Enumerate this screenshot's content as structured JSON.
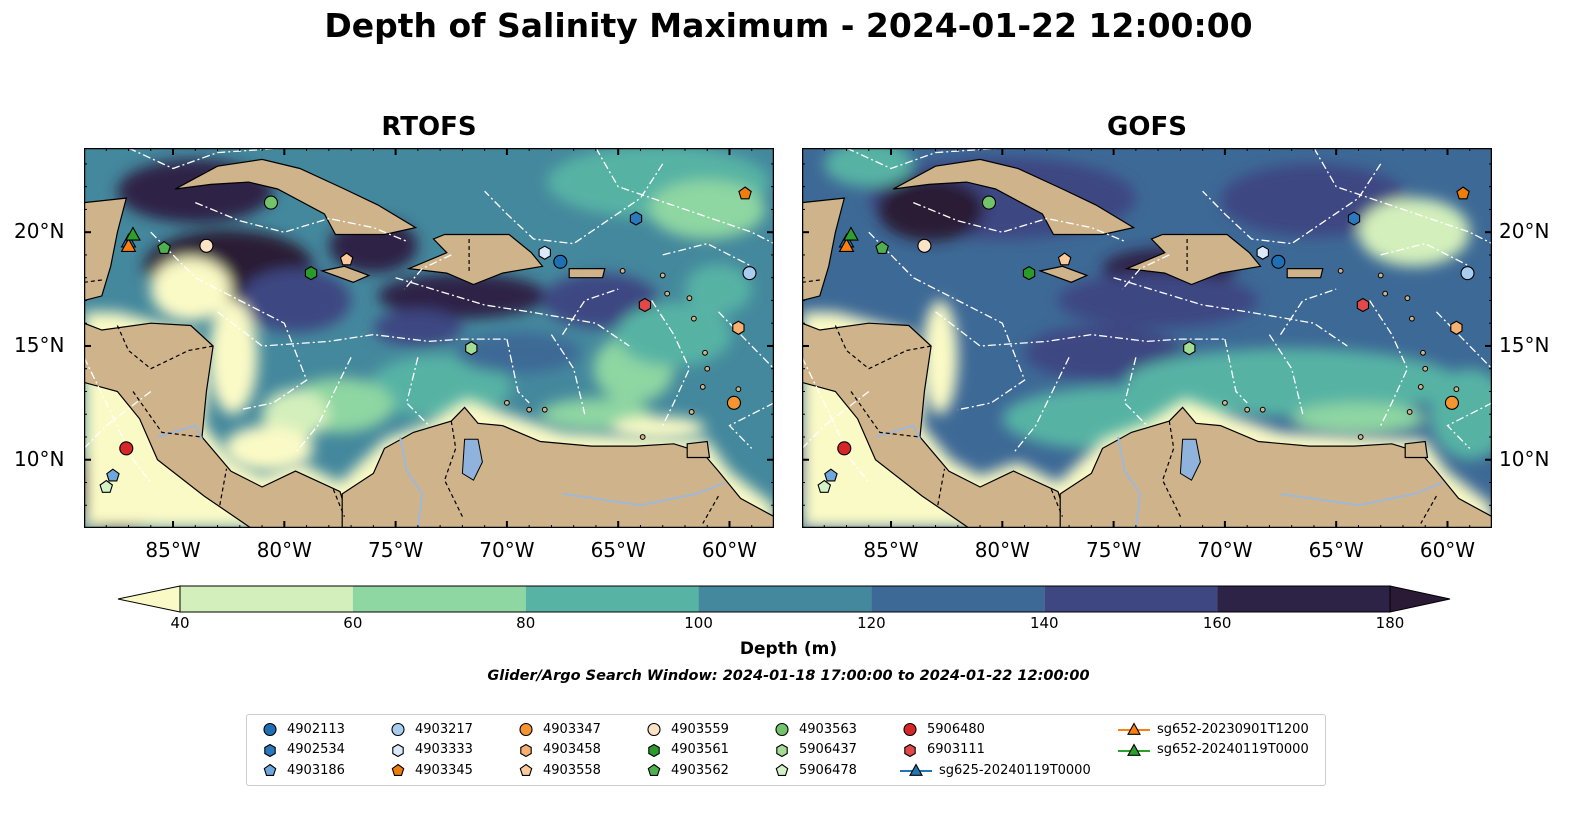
{
  "title": "Depth of Salinity Maximum - 2024-01-22 12:00:00",
  "panels": [
    {
      "title": "RTOFS",
      "model": "rtofs"
    },
    {
      "title": "GOFS",
      "model": "gofs"
    }
  ],
  "axes": {
    "lon_labels": [
      "85°W",
      "80°W",
      "75°W",
      "70°W",
      "65°W",
      "60°W"
    ],
    "lon_values": [
      -85,
      -80,
      -75,
      -70,
      -65,
      -60
    ],
    "lat_labels": [
      "20°N",
      "15°N",
      "10°N"
    ],
    "lat_values": [
      20,
      15,
      10
    ],
    "lon_range": [
      -89,
      -58
    ],
    "lat_range": [
      7,
      23.7
    ]
  },
  "colorbar": {
    "label": "Depth (m)",
    "tick_labels": [
      "40",
      "60",
      "80",
      "100",
      "120",
      "140",
      "160",
      "180"
    ],
    "ticks": [
      40,
      60,
      80,
      100,
      120,
      140,
      160,
      180
    ],
    "colors": [
      "#d3efbb",
      "#8ed6a2",
      "#57b3a4",
      "#44889d",
      "#3d6996",
      "#3e4782",
      "#2d2346"
    ],
    "under_color": "#fafac6",
    "over_color": "#2a1a35",
    "extend": "both"
  },
  "colors": {
    "land": "#cfb38b",
    "lake": "#8fb3dd",
    "ocean_light": "#fafac6"
  },
  "search_window": "Glider/Argo Search Window: 2024-01-18 17:00:00 to 2024-01-22 12:00:00",
  "legend": {
    "columns": [
      [
        {
          "label": "4902113",
          "marker": "circle",
          "color": "#1f6fb4"
        },
        {
          "label": "4902534",
          "marker": "hexagon",
          "color": "#2b78bd"
        },
        {
          "label": "4903186",
          "marker": "pentagon",
          "color": "#6fa6dc"
        }
      ],
      [
        {
          "label": "4903217",
          "marker": "circle",
          "color": "#a9cdf0"
        },
        {
          "label": "4903333",
          "marker": "hexagon",
          "color": "#dbeafb"
        },
        {
          "label": "4903345",
          "marker": "pentagon",
          "color": "#ef7d0b"
        }
      ],
      [
        {
          "label": "4903347",
          "marker": "circle",
          "color": "#f59532"
        },
        {
          "label": "4903458",
          "marker": "hexagon",
          "color": "#f8b072"
        },
        {
          "label": "4903558",
          "marker": "pentagon",
          "color": "#fbc99a"
        }
      ],
      [
        {
          "label": "4903559",
          "marker": "circle",
          "color": "#fde3c6"
        },
        {
          "label": "4903561",
          "marker": "hexagon",
          "color": "#2a9a2a"
        },
        {
          "label": "4903562",
          "marker": "pentagon",
          "color": "#4fb04f"
        }
      ],
      [
        {
          "label": "4903563",
          "marker": "circle",
          "color": "#72c36a"
        },
        {
          "label": "5906437",
          "marker": "hexagon",
          "color": "#a3dc95"
        },
        {
          "label": "5906478",
          "marker": "pentagon",
          "color": "#d3f2c8"
        }
      ],
      [
        {
          "label": "5906480",
          "marker": "circle",
          "color": "#d62628"
        },
        {
          "label": "6903111",
          "marker": "hexagon",
          "color": "#e2484a"
        },
        {
          "label": "sg625-20240119T0000",
          "marker": "triangle-line",
          "color": "#1f77b4"
        }
      ],
      [
        {
          "label": "sg652-20230901T1200",
          "marker": "triangle-line",
          "color": "#ff7f0e"
        },
        {
          "label": "sg652-20240119T0000",
          "marker": "triangle-line",
          "color": "#2ca02c"
        }
      ]
    ]
  },
  "floats": [
    {
      "id": "4902113",
      "marker": "circle",
      "color": "#1f6fb4",
      "lon": -67.6,
      "lat": 18.7
    },
    {
      "id": "4902534",
      "marker": "hexagon",
      "color": "#2b78bd",
      "lon": -64.2,
      "lat": 20.6
    },
    {
      "id": "4903186",
      "marker": "pentagon",
      "color": "#6fa6dc",
      "lon": -87.7,
      "lat": 9.3
    },
    {
      "id": "4903217",
      "marker": "circle",
      "color": "#a9cdf0",
      "lon": -59.1,
      "lat": 18.2
    },
    {
      "id": "4903333",
      "marker": "hexagon",
      "color": "#dbeafb",
      "lon": -68.3,
      "lat": 19.1
    },
    {
      "id": "4903345",
      "marker": "pentagon",
      "color": "#ef7d0b",
      "lon": -59.3,
      "lat": 21.7
    },
    {
      "id": "4903347",
      "marker": "circle",
      "color": "#f59532",
      "lon": -59.8,
      "lat": 12.5
    },
    {
      "id": "4903458",
      "marker": "hexagon",
      "color": "#f8b072",
      "lon": -59.6,
      "lat": 15.8
    },
    {
      "id": "4903558",
      "marker": "pentagon",
      "color": "#fbc99a",
      "lon": -77.2,
      "lat": 18.8
    },
    {
      "id": "4903559",
      "marker": "circle",
      "color": "#fde3c6",
      "lon": -83.5,
      "lat": 19.4
    },
    {
      "id": "4903561",
      "marker": "hexagon",
      "color": "#2a9a2a",
      "lon": -78.8,
      "lat": 18.2
    },
    {
      "id": "4903562",
      "marker": "pentagon",
      "color": "#4fb04f",
      "lon": -85.4,
      "lat": 19.3
    },
    {
      "id": "4903563",
      "marker": "circle",
      "color": "#72c36a",
      "lon": -80.6,
      "lat": 21.3
    },
    {
      "id": "5906437",
      "marker": "hexagon",
      "color": "#a3dc95",
      "lon": -71.6,
      "lat": 14.9
    },
    {
      "id": "5906478",
      "marker": "pentagon",
      "color": "#d3f2c8",
      "lon": -88.0,
      "lat": 8.8
    },
    {
      "id": "5906480",
      "marker": "circle",
      "color": "#d62628",
      "lon": -87.1,
      "lat": 10.5
    },
    {
      "id": "6903111",
      "marker": "hexagon",
      "color": "#e2484a",
      "lon": -63.8,
      "lat": 16.8
    },
    {
      "id": "sg625-20240119T0000",
      "marker": "triangle",
      "color": "#1f77b4",
      "lon": -87.0,
      "lat": 19.6
    },
    {
      "id": "sg652-20230901T1200",
      "marker": "triangle",
      "color": "#ff7f0e",
      "lon": -87.0,
      "lat": 19.4
    },
    {
      "id": "sg652-20240119T0000",
      "marker": "triangle",
      "color": "#2ca02c",
      "lon": -86.8,
      "lat": 19.9
    }
  ]
}
